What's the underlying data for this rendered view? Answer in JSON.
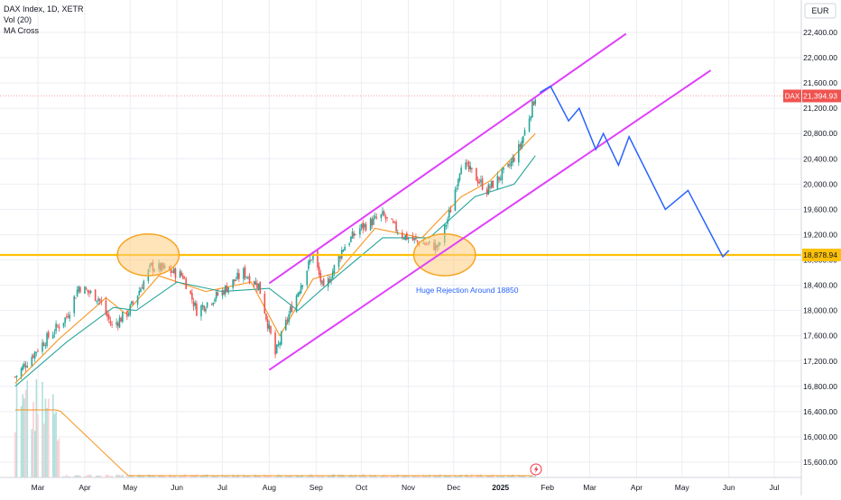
{
  "legend": {
    "symbol": "DAX Index, 1D, XETR",
    "volume": "Vol (20)",
    "ma": "MA Cross"
  },
  "currency": "EUR",
  "last_price_label": {
    "tag": "DAX",
    "value": "21,394.93"
  },
  "level_label": "18,878.94",
  "annotation": "Huge Rejection Around 18850",
  "lightning_icon": "lightning-icon",
  "colors": {
    "up": "#26a69a",
    "down": "#ef5350",
    "ma_fast": "#f7931a",
    "ma_slow": "#26a69a",
    "channel": "#e040fb",
    "level": "#ffc107",
    "projection": "#2962ff",
    "grid": "#eceef2",
    "axis_text": "#131722",
    "circle_fill": "#ffcc80",
    "circle_stroke": "#f5a623"
  },
  "chart_data": {
    "type": "candlestick",
    "xlim": [
      "2024-02-15",
      "2025-07-25"
    ],
    "ylim": [
      15400,
      22800
    ],
    "y_ticks": [
      15600,
      16000,
      16400,
      16800,
      17200,
      17600,
      18000,
      18400,
      18800,
      19200,
      19600,
      20000,
      20400,
      20800,
      21200,
      21600,
      22000,
      22400
    ],
    "y_tick_labels": [
      "15,600.00",
      "16,000.00",
      "16,400.00",
      "16,800.00",
      "17,200.00",
      "17,600.00",
      "18,000.00",
      "18,400.00",
      "18,800.00",
      "19,200.00",
      "19,600.00",
      "20,000.00",
      "20,400.00",
      "20,800.00",
      "21,200.00",
      "21,600.00",
      "22,000.00",
      "22,400.00"
    ],
    "x_ticks": [
      {
        "date": "2024-03-01",
        "label": "Mar"
      },
      {
        "date": "2024-04-01",
        "label": "Apr"
      },
      {
        "date": "2024-05-01",
        "label": "May"
      },
      {
        "date": "2024-06-01",
        "label": "Jun"
      },
      {
        "date": "2024-07-01",
        "label": "Jul"
      },
      {
        "date": "2024-08-01",
        "label": "Aug"
      },
      {
        "date": "2024-09-01",
        "label": "Sep"
      },
      {
        "date": "2024-10-01",
        "label": "Oct"
      },
      {
        "date": "2024-11-01",
        "label": "Nov"
      },
      {
        "date": "2024-12-01",
        "label": "Dec"
      },
      {
        "date": "2025-01-01",
        "label": "2025"
      },
      {
        "date": "2025-02-01",
        "label": "Feb"
      },
      {
        "date": "2025-03-01",
        "label": "Mar"
      },
      {
        "date": "2025-04-01",
        "label": "Apr"
      },
      {
        "date": "2025-05-01",
        "label": "May"
      },
      {
        "date": "2025-06-01",
        "label": "Jun"
      },
      {
        "date": "2025-07-01",
        "label": "Jul"
      }
    ],
    "close_path": [
      [
        "2024-02-15",
        16950
      ],
      [
        "2024-03-01",
        17400
      ],
      [
        "2024-03-20",
        17900
      ],
      [
        "2024-03-28",
        18380
      ],
      [
        "2024-04-10",
        18200
      ],
      [
        "2024-04-19",
        17750
      ],
      [
        "2024-04-30",
        17980
      ],
      [
        "2024-05-15",
        18700
      ],
      [
        "2024-05-24",
        18650
      ],
      [
        "2024-06-05",
        18550
      ],
      [
        "2024-06-14",
        18000
      ],
      [
        "2024-07-01",
        18300
      ],
      [
        "2024-07-15",
        18600
      ],
      [
        "2024-07-25",
        18400
      ],
      [
        "2024-08-05",
        17300
      ],
      [
        "2024-08-15",
        18000
      ],
      [
        "2024-08-30",
        18900
      ],
      [
        "2024-09-06",
        18300
      ],
      [
        "2024-09-19",
        19000
      ],
      [
        "2024-09-30",
        19300
      ],
      [
        "2024-10-15",
        19500
      ],
      [
        "2024-10-28",
        19200
      ],
      [
        "2024-11-05",
        19100
      ],
      [
        "2024-11-21",
        19000
      ],
      [
        "2024-11-29",
        19600
      ],
      [
        "2024-12-06",
        20350
      ],
      [
        "2024-12-16",
        20100
      ],
      [
        "2024-12-23",
        19900
      ],
      [
        "2025-01-06",
        20250
      ],
      [
        "2025-01-14",
        20600
      ],
      [
        "2025-01-24",
        21394
      ]
    ],
    "moving_averages": [
      {
        "name": "fast",
        "points": [
          [
            "2024-02-15",
            16850
          ],
          [
            "2024-03-15",
            17550
          ],
          [
            "2024-04-15",
            18200
          ],
          [
            "2024-04-28",
            17950
          ],
          [
            "2024-05-20",
            18550
          ],
          [
            "2024-06-20",
            18300
          ],
          [
            "2024-07-20",
            18450
          ],
          [
            "2024-08-08",
            17600
          ],
          [
            "2024-08-30",
            18500
          ],
          [
            "2024-09-15",
            18600
          ],
          [
            "2024-10-10",
            19300
          ],
          [
            "2024-11-10",
            19150
          ],
          [
            "2024-12-06",
            19800
          ],
          [
            "2024-12-25",
            20050
          ],
          [
            "2025-01-24",
            20800
          ]
        ]
      },
      {
        "name": "slow",
        "points": [
          [
            "2024-02-15",
            16800
          ],
          [
            "2024-03-20",
            17500
          ],
          [
            "2024-04-20",
            18050
          ],
          [
            "2024-05-05",
            18000
          ],
          [
            "2024-06-01",
            18450
          ],
          [
            "2024-07-01",
            18300
          ],
          [
            "2024-08-01",
            18350
          ],
          [
            "2024-08-20",
            18000
          ],
          [
            "2024-09-15",
            18550
          ],
          [
            "2024-10-15",
            19150
          ],
          [
            "2024-11-15",
            19150
          ],
          [
            "2024-12-15",
            19800
          ],
          [
            "2025-01-10",
            20000
          ],
          [
            "2025-01-24",
            20450
          ]
        ]
      }
    ],
    "volume": {
      "active_until": "2024-03-15",
      "high_start": "2024-02-15",
      "notes": "volume bars elevated until mid-March 2024, then near zero"
    },
    "last_price": 21394.93,
    "horizontal_level": 18878.94,
    "channel_lines": [
      {
        "from": [
          "2024-08-02",
          17050
        ],
        "to": [
          "2025-03-25",
          22350
        ]
      },
      {
        "from": [
          "2024-08-02",
          17050
        ],
        "to": [
          "2024-08-02",
          17050
        ]
      },
      {
        "from": [
          "2024-08-02",
          18400
        ],
        "to": [
          "2025-01-28",
          21650
        ]
      },
      {
        "from": [
          "2024-08-01",
          17030
        ],
        "to": [
          "2025-05-20",
          21800
        ]
      }
    ],
    "projection_path": [
      [
        "2025-01-27",
        21450
      ],
      [
        "2025-02-03",
        21550
      ],
      [
        "2025-02-15",
        21000
      ],
      [
        "2025-02-22",
        21200
      ],
      [
        "2025-03-05",
        20550
      ],
      [
        "2025-03-10",
        20800
      ],
      [
        "2025-03-20",
        20300
      ],
      [
        "2025-03-27",
        20750
      ],
      [
        "2025-04-20",
        19600
      ],
      [
        "2025-05-05",
        19900
      ],
      [
        "2025-05-28",
        18850
      ],
      [
        "2025-06-01",
        18950
      ]
    ],
    "circles": [
      {
        "center": [
          "2024-05-13",
          18880
        ],
        "rx_days": 12,
        "ry_value": 330
      },
      {
        "center": [
          "2024-11-25",
          18880
        ],
        "rx_days": 12,
        "ry_value": 330
      }
    ]
  }
}
